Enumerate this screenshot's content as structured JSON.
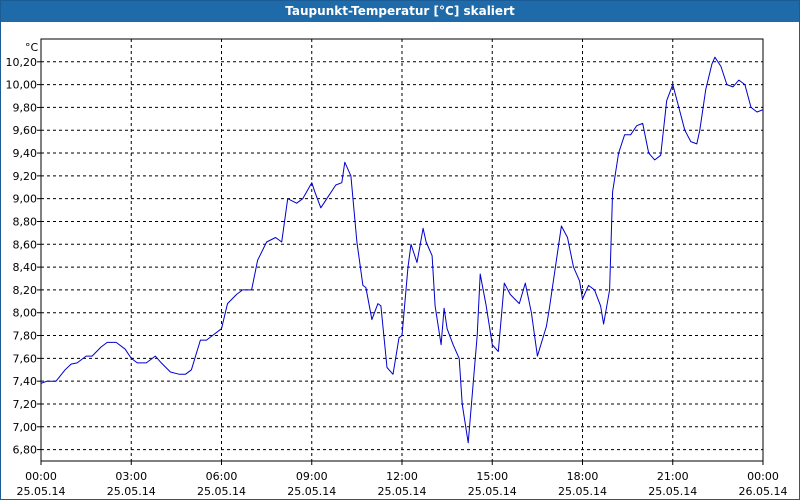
{
  "chart_data": {
    "type": "line",
    "title": "Taupunkt-Temperatur [°C] skaliert",
    "ylabel": "°C",
    "xlabel": "",
    "ylim": [
      6.7,
      10.4
    ],
    "xlim": [
      0,
      24
    ],
    "grid": true,
    "y_ticks": [
      "6,80",
      "7,00",
      "7,20",
      "7,40",
      "7,60",
      "7,80",
      "8,00",
      "8,20",
      "8,40",
      "8,60",
      "8,80",
      "9,00",
      "9,20",
      "9,40",
      "9,60",
      "9,80",
      "10,00",
      "10,20"
    ],
    "y_tick_values": [
      6.8,
      7.0,
      7.2,
      7.4,
      7.6,
      7.8,
      8.0,
      8.2,
      8.4,
      8.6,
      8.8,
      9.0,
      9.2,
      9.4,
      9.6,
      9.8,
      10.0,
      10.2
    ],
    "x_ticks": [
      {
        "x": 0,
        "time": "00:00",
        "date": "25.05.14"
      },
      {
        "x": 3,
        "time": "03:00",
        "date": "25.05.14"
      },
      {
        "x": 6,
        "time": "06:00",
        "date": "25.05.14"
      },
      {
        "x": 9,
        "time": "09:00",
        "date": "25.05.14"
      },
      {
        "x": 12,
        "time": "12:00",
        "date": "25.05.14"
      },
      {
        "x": 15,
        "time": "15:00",
        "date": "25.05.14"
      },
      {
        "x": 18,
        "time": "18:00",
        "date": "25.05.14"
      },
      {
        "x": 21,
        "time": "21:00",
        "date": "25.05.14"
      },
      {
        "x": 24,
        "time": "00:00",
        "date": "26.05.14"
      }
    ],
    "series": [
      {
        "color": "#0000cc",
        "x": [
          0,
          0.2,
          0.5,
          0.8,
          1.0,
          1.2,
          1.5,
          1.7,
          2.0,
          2.2,
          2.5,
          2.8,
          3.0,
          3.2,
          3.5,
          3.8,
          4.0,
          4.3,
          4.6,
          4.8,
          5.0,
          5.3,
          5.5,
          5.7,
          6.0,
          6.2,
          6.5,
          6.7,
          7.0,
          7.2,
          7.5,
          7.8,
          8.0,
          8.2,
          8.5,
          8.7,
          9.0,
          9.1,
          9.3,
          9.5,
          9.8,
          10.0,
          10.1,
          10.3,
          10.5,
          10.7,
          10.8,
          11.0,
          11.2,
          11.3,
          11.5,
          11.7,
          11.9,
          12.0,
          12.2,
          12.3,
          12.5,
          12.7,
          12.8,
          13.0,
          13.1,
          13.3,
          13.4,
          13.5,
          13.7,
          13.9,
          14.0,
          14.2,
          14.5,
          14.6,
          14.8,
          15.0,
          15.2,
          15.4,
          15.6,
          15.9,
          16.1,
          16.3,
          16.5,
          16.8,
          16.9,
          17.1,
          17.3,
          17.5,
          17.7,
          17.9,
          18.0,
          18.2,
          18.4,
          18.6,
          18.7,
          18.9,
          19.0,
          19.2,
          19.4,
          19.6,
          19.8,
          20.0,
          20.2,
          20.4,
          20.6,
          20.8,
          21.0,
          21.2,
          21.4,
          21.6,
          21.8,
          21.9,
          22.1,
          22.3,
          22.4,
          22.6,
          22.8,
          23.0,
          23.2,
          23.4,
          23.6,
          23.8,
          24.0
        ],
        "y": [
          7.38,
          7.4,
          7.4,
          7.5,
          7.55,
          7.56,
          7.62,
          7.62,
          7.7,
          7.74,
          7.74,
          7.68,
          7.6,
          7.56,
          7.56,
          7.62,
          7.56,
          7.48,
          7.46,
          7.46,
          7.5,
          7.76,
          7.76,
          7.8,
          7.86,
          8.08,
          8.16,
          8.2,
          8.2,
          8.46,
          8.62,
          8.66,
          8.62,
          9.0,
          8.96,
          9.0,
          9.14,
          9.06,
          8.92,
          9.0,
          9.12,
          9.14,
          9.32,
          9.2,
          8.62,
          8.24,
          8.22,
          7.94,
          8.08,
          8.06,
          7.52,
          7.46,
          7.78,
          7.8,
          8.4,
          8.6,
          8.44,
          8.74,
          8.62,
          8.5,
          8.06,
          7.72,
          8.04,
          7.86,
          7.72,
          7.6,
          7.2,
          6.86,
          7.8,
          8.34,
          8.06,
          7.72,
          7.66,
          8.26,
          8.16,
          8.08,
          8.26,
          8.0,
          7.62,
          7.88,
          8.04,
          8.4,
          8.76,
          8.66,
          8.4,
          8.28,
          8.12,
          8.24,
          8.2,
          8.06,
          7.9,
          8.2,
          9.06,
          9.4,
          9.56,
          9.56,
          9.64,
          9.66,
          9.4,
          9.34,
          9.38,
          9.86,
          10.0,
          9.8,
          9.6,
          9.5,
          9.48,
          9.6,
          9.96,
          10.18,
          10.24,
          10.16,
          10.0,
          9.98,
          10.04,
          10.0,
          9.8,
          9.76,
          9.78
        ],
        "values_note": ""
      }
    ]
  }
}
